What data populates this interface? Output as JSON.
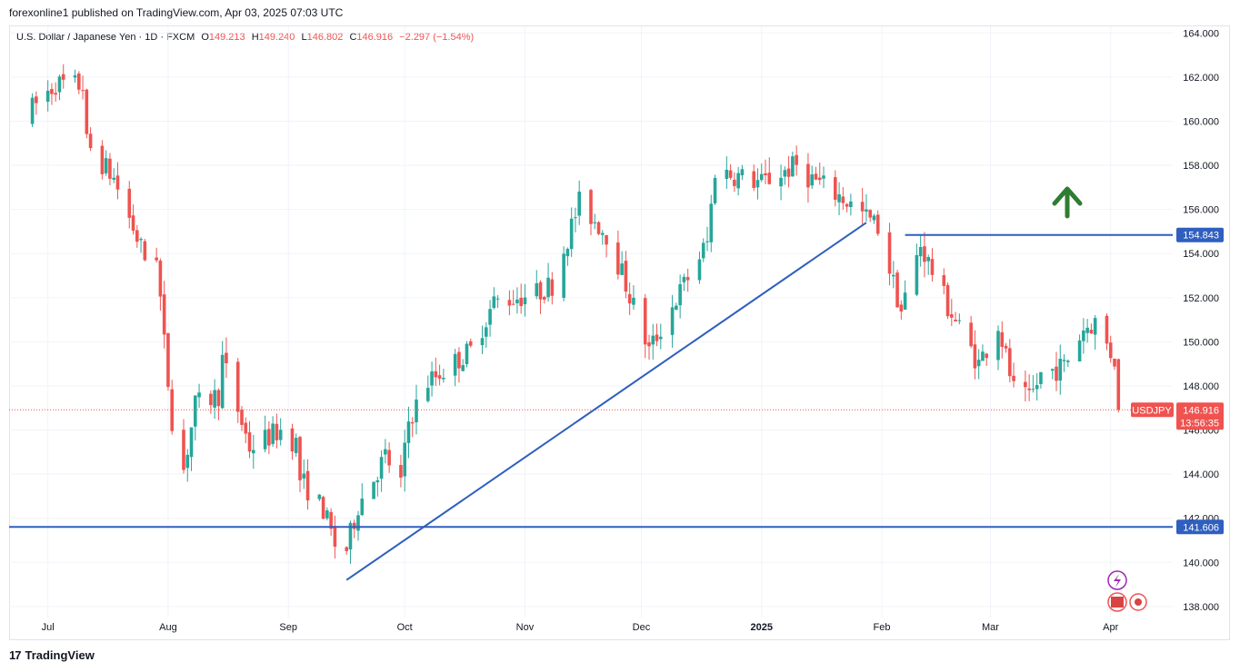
{
  "header": {
    "publish_text": "forexonline1 published on TradingView.com, Apr 03, 2025 07:03 UTC"
  },
  "legend": {
    "symbol": "U.S. Dollar / Japanese Yen · 1D · FXCM",
    "o_label": "O",
    "o_value": "149.213",
    "h_label": "H",
    "h_value": "149.240",
    "l_label": "L",
    "l_value": "146.802",
    "c_label": "C",
    "c_value": "146.916",
    "change": "−2.297 (−1.54%)"
  },
  "footer": {
    "brand": "TradingView"
  },
  "colors": {
    "up": "#26a69a",
    "down": "#ef5350",
    "trend": "#2f5fbf",
    "arrow": "#2e7d32"
  },
  "chart_data": {
    "type": "candlestick",
    "y_ticks": [
      "164.000",
      "162.000",
      "160.000",
      "158.000",
      "156.000",
      "154.000",
      "152.000",
      "150.000",
      "148.000",
      "146.000",
      "144.000",
      "142.000",
      "140.000",
      "138.000"
    ],
    "x_ticks": [
      "Jul",
      "Aug",
      "Sep",
      "Oct",
      "Nov",
      "Dec",
      "2025",
      "Feb",
      "Mar",
      "Apr"
    ],
    "ylim": [
      137.5,
      164.3
    ],
    "price_tags": [
      {
        "label": "154.843",
        "value": 154.843
      },
      {
        "label": "141.606",
        "value": 141.606
      }
    ],
    "current": {
      "symbol": "USDJPY",
      "price": "146.916",
      "countdown": "13:56:35",
      "value": 146.916
    },
    "horizontal_lines": [
      {
        "value": 141.606,
        "from": "start",
        "to": "end"
      },
      {
        "value": 154.843,
        "from": "2025-02-07",
        "to": "end"
      }
    ],
    "trendline": {
      "start": {
        "date": "2024-09-16",
        "value": 139.2
      },
      "end": {
        "date": "2025-01-28",
        "value": 155.4
      }
    },
    "annotation": "up-arrow",
    "anchors": [
      [
        "2024-06-27",
        160.6
      ],
      [
        "2024-07-03",
        161.7
      ],
      [
        "2024-07-10",
        161.6
      ],
      [
        "2024-07-11",
        159.0
      ],
      [
        "2024-07-18",
        157.4
      ],
      [
        "2024-07-26",
        153.8
      ],
      [
        "2024-07-29",
        154.0
      ],
      [
        "2024-07-31",
        149.9
      ],
      [
        "2024-08-02",
        146.5
      ],
      [
        "2024-08-05",
        144.2
      ],
      [
        "2024-08-08",
        147.1
      ],
      [
        "2024-08-14",
        147.6
      ],
      [
        "2024-08-15",
        149.2
      ],
      [
        "2024-08-22",
        145.2
      ],
      [
        "2024-08-30",
        146.0
      ],
      [
        "2024-09-03",
        145.4
      ],
      [
        "2024-09-04",
        143.8
      ],
      [
        "2024-09-10",
        142.4
      ],
      [
        "2024-09-13",
        140.8
      ],
      [
        "2024-09-16",
        140.6
      ],
      [
        "2024-09-19",
        142.6
      ],
      [
        "2024-09-26",
        144.8
      ],
      [
        "2024-09-30",
        143.6
      ],
      [
        "2024-10-02",
        146.4
      ],
      [
        "2024-10-07",
        148.2
      ],
      [
        "2024-10-18",
        149.6
      ],
      [
        "2024-10-24",
        151.8
      ],
      [
        "2024-11-04",
        152.2
      ],
      [
        "2024-11-08",
        152.6
      ],
      [
        "2024-11-15",
        156.3
      ],
      [
        "2024-11-22",
        154.9
      ],
      [
        "2024-11-26",
        153.1
      ],
      [
        "2024-12-03",
        149.6
      ],
      [
        "2024-12-12",
        152.6
      ],
      [
        "2024-12-18",
        154.5
      ],
      [
        "2024-12-20",
        157.8
      ],
      [
        "2025-01-01",
        157.2
      ],
      [
        "2025-01-10",
        158.0
      ],
      [
        "2025-01-13",
        157.5
      ],
      [
        "2025-01-22",
        156.5
      ],
      [
        "2025-01-31",
        155.2
      ],
      [
        "2025-02-06",
        151.4
      ],
      [
        "2025-02-11",
        154.4
      ],
      [
        "2025-02-18",
        151.6
      ],
      [
        "2025-02-26",
        149.0
      ],
      [
        "2025-03-03",
        150.8
      ],
      [
        "2025-03-07",
        147.8
      ],
      [
        "2025-03-11",
        147.3
      ],
      [
        "2025-03-14",
        148.5
      ],
      [
        "2025-03-20",
        148.9
      ],
      [
        "2025-03-25",
        150.6
      ],
      [
        "2025-03-28",
        150.9
      ],
      [
        "2025-04-01",
        149.5
      ],
      [
        "2025-04-02",
        149.213
      ],
      [
        "2025-04-03",
        146.916
      ]
    ]
  }
}
